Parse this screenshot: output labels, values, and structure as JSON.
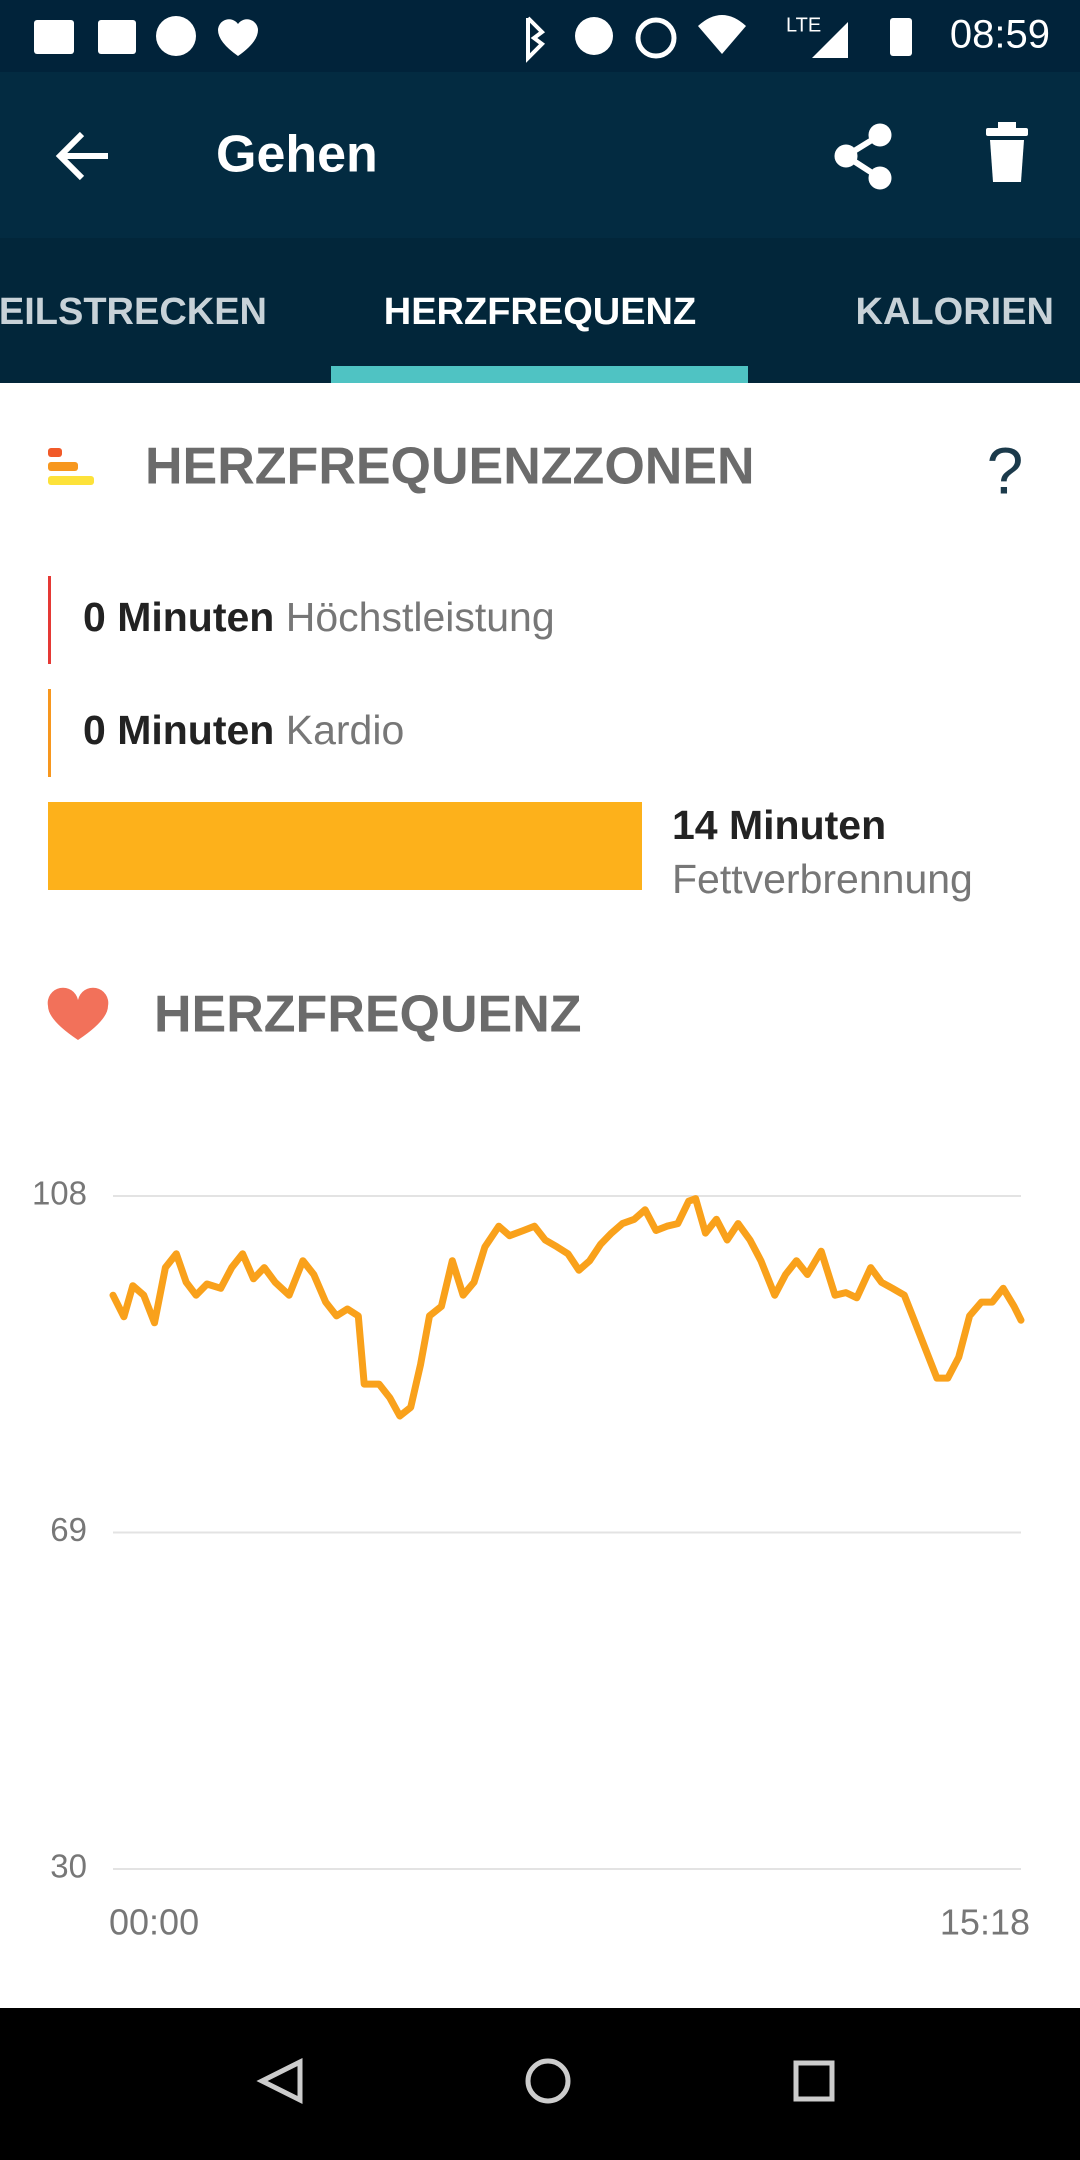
{
  "status_bar": {
    "network": "LTE",
    "time": "08:59"
  },
  "toolbar": {
    "title": "Gehen"
  },
  "tabs": [
    "TEILSTRECKEN",
    "HERZFREQUENZ",
    "KALORIEN"
  ],
  "zones": {
    "title": "HERZFREQUENZZONEN",
    "help": "?",
    "items": [
      {
        "value": 0,
        "label": "0 Minuten",
        "name": "Höchstleistung",
        "color": "#e53935"
      },
      {
        "value": 0,
        "label": "0 Minuten",
        "name": "Kardio",
        "color": "#f7971e"
      },
      {
        "value": 14,
        "label": "14 Minuten",
        "name": "Fettverbrennung",
        "color": "#fdb11b"
      }
    ]
  },
  "heart_rate": {
    "title": "HERZFREQUENZ"
  },
  "chart_data": {
    "type": "line",
    "xlim": [
      0,
      918
    ],
    "xticks": [
      {
        "value": 0,
        "label": "00:00"
      },
      {
        "value": 918,
        "label": "15:18"
      }
    ],
    "ylim": [
      30,
      108
    ],
    "yticks": [
      30,
      69,
      108
    ],
    "grid": true,
    "x": [
      0,
      11,
      20,
      31,
      42,
      53,
      64,
      74,
      84,
      95,
      109,
      120,
      131,
      142,
      153,
      164,
      178,
      192,
      203,
      215,
      226,
      237,
      248,
      254,
      269,
      280,
      290,
      301,
      311,
      320,
      332,
      343,
      354,
      365,
      376,
      390,
      401,
      415,
      426,
      437,
      449,
      460,
      471,
      482,
      493,
      504,
      515,
      527,
      538,
      549,
      560,
      571,
      582,
      589,
      599,
      610,
      621,
      632,
      644,
      655,
      669,
      680,
      691,
      702,
      716,
      730,
      741,
      752,
      766,
      777,
      788,
      800,
      811,
      822,
      833,
      844,
      855,
      866,
      878,
      889,
      900,
      911,
      918
    ],
    "series": [
      {
        "color": "#f9a11b",
        "values": [
          96.5,
          94,
          97.6,
          96.5,
          93.3,
          99.7,
          101.3,
          98,
          96.5,
          97.8,
          97.3,
          99.7,
          101.3,
          98.4,
          99.7,
          98,
          96.5,
          100.5,
          98.9,
          95.7,
          94.1,
          94.9,
          94.1,
          86.2,
          86.2,
          84.6,
          82.5,
          83.5,
          88.5,
          94.1,
          95.2,
          100.5,
          96.5,
          98,
          102.1,
          104.5,
          103.4,
          104,
          104.5,
          102.9,
          102.1,
          101.3,
          99.4,
          100.5,
          102.4,
          103.7,
          104.8,
          105.3,
          106.4,
          104,
          104.5,
          104.8,
          107.4,
          107.7,
          103.7,
          105.3,
          102.9,
          104.8,
          102.9,
          100.5,
          96.5,
          98.9,
          100.5,
          98.9,
          101.6,
          96.5,
          96.8,
          96.2,
          99.7,
          98,
          97.3,
          96.5,
          93.3,
          90.1,
          86.9,
          86.9,
          89.3,
          94.1,
          95.7,
          95.7,
          97.3,
          95.2,
          93.6
        ]
      }
    ]
  }
}
